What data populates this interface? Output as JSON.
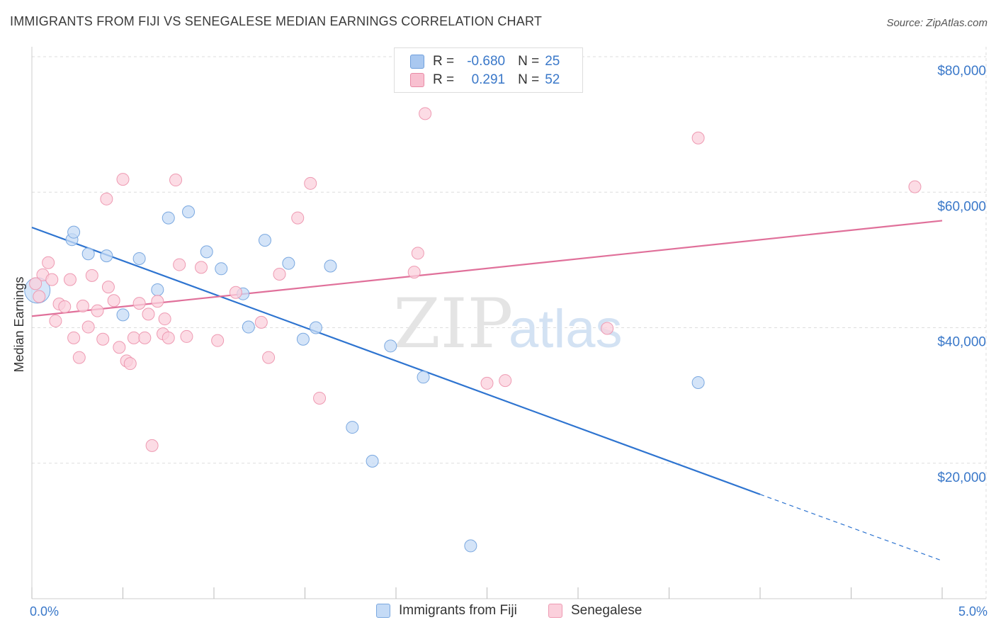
{
  "title": "IMMIGRANTS FROM FIJI VS SENEGALESE MEDIAN EARNINGS CORRELATION CHART",
  "source": "Source: ZipAtlas.com",
  "watermark": {
    "zip": "ZIP",
    "atlas": "atlas"
  },
  "legend": {
    "rows": [
      {
        "r_label": "R =",
        "r_value": "-0.680",
        "n_label": "N =",
        "n_value": "25",
        "color": "#a9c8f0",
        "border": "#6f9fdc"
      },
      {
        "r_label": "R =",
        "r_value": "0.291",
        "n_label": "N =",
        "n_value": "52",
        "color": "#f8c0d0",
        "border": "#e88aa6"
      }
    ]
  },
  "bottom_legend": [
    {
      "label": "Immigrants from Fiji",
      "color": "#c5dbf6",
      "border": "#7aa8e0"
    },
    {
      "label": "Senegalese",
      "color": "#fbd0dc",
      "border": "#ee9ab2"
    }
  ],
  "colors": {
    "fiji_fill": "#c5dbf6",
    "fiji_stroke": "#7aa8e0",
    "fiji_line": "#2e74d0",
    "sen_fill": "#fbd0dc",
    "sen_stroke": "#ee9ab2",
    "sen_line": "#e0709a",
    "grid": "#dddddd",
    "tick_text": "#3a78c9"
  },
  "chart_data": {
    "type": "scatter",
    "xlabel": "",
    "ylabel": "Median Earnings",
    "xlim": [
      0,
      5
    ],
    "ylim": [
      0,
      80000
    ],
    "x_tick_labels": [
      {
        "x": 0,
        "label": "0.0%"
      },
      {
        "x": 5,
        "label": "5.0%"
      }
    ],
    "y_tick_labels": [
      {
        "y": 20000,
        "label": "$20,000"
      },
      {
        "y": 40000,
        "label": "$40,000"
      },
      {
        "y": 60000,
        "label": "$60,000"
      },
      {
        "y": 80000,
        "label": "$80,000"
      }
    ],
    "grid": true,
    "series": [
      {
        "name": "Immigrants from Fiji",
        "points": [
          [
            0.03,
            45500
          ],
          [
            0.22,
            53000
          ],
          [
            0.23,
            54100
          ],
          [
            0.31,
            50900
          ],
          [
            0.41,
            50600
          ],
          [
            0.5,
            41900
          ],
          [
            0.59,
            50200
          ],
          [
            0.69,
            45600
          ],
          [
            0.75,
            56200
          ],
          [
            0.86,
            57100
          ],
          [
            0.96,
            51200
          ],
          [
            1.04,
            48700
          ],
          [
            1.16,
            45000
          ],
          [
            1.19,
            40100
          ],
          [
            1.28,
            52900
          ],
          [
            1.41,
            49500
          ],
          [
            1.49,
            38300
          ],
          [
            1.56,
            40000
          ],
          [
            1.64,
            49100
          ],
          [
            1.76,
            25300
          ],
          [
            1.87,
            20300
          ],
          [
            1.97,
            37300
          ],
          [
            2.15,
            32700
          ],
          [
            2.41,
            7800
          ],
          [
            3.66,
            31900
          ]
        ],
        "trend": {
          "x0": 0,
          "y0": 54800,
          "x1": 4.0,
          "y1": 15400,
          "dash_x1": 5.0,
          "dash_y1": 5600
        }
      },
      {
        "name": "Senegalese",
        "points": [
          [
            0.04,
            44600
          ],
          [
            0.06,
            47800
          ],
          [
            0.09,
            49600
          ],
          [
            0.11,
            47100
          ],
          [
            0.13,
            41000
          ],
          [
            0.15,
            43500
          ],
          [
            0.18,
            43100
          ],
          [
            0.21,
            47100
          ],
          [
            0.23,
            38500
          ],
          [
            0.26,
            35600
          ],
          [
            0.28,
            43200
          ],
          [
            0.31,
            40100
          ],
          [
            0.33,
            47700
          ],
          [
            0.36,
            42500
          ],
          [
            0.39,
            38300
          ],
          [
            0.41,
            59000
          ],
          [
            0.42,
            46000
          ],
          [
            0.45,
            44000
          ],
          [
            0.48,
            37100
          ],
          [
            0.5,
            61900
          ],
          [
            0.52,
            35100
          ],
          [
            0.54,
            34700
          ],
          [
            0.56,
            38500
          ],
          [
            0.59,
            43600
          ],
          [
            0.62,
            38500
          ],
          [
            0.64,
            42000
          ],
          [
            0.66,
            22600
          ],
          [
            0.69,
            43900
          ],
          [
            0.72,
            39100
          ],
          [
            0.73,
            41300
          ],
          [
            0.75,
            38500
          ],
          [
            0.79,
            61800
          ],
          [
            0.81,
            49300
          ],
          [
            0.85,
            38700
          ],
          [
            0.93,
            48900
          ],
          [
            1.02,
            38100
          ],
          [
            1.12,
            45200
          ],
          [
            1.26,
            40800
          ],
          [
            1.3,
            35600
          ],
          [
            1.36,
            47900
          ],
          [
            1.46,
            56200
          ],
          [
            1.53,
            61300
          ],
          [
            1.58,
            29600
          ],
          [
            2.1,
            48200
          ],
          [
            2.12,
            51000
          ],
          [
            2.16,
            71600
          ],
          [
            2.5,
            31800
          ],
          [
            2.6,
            32200
          ],
          [
            3.16,
            39900
          ],
          [
            3.66,
            68000
          ],
          [
            4.85,
            60800
          ],
          [
            0.02,
            46500
          ]
        ],
        "trend": {
          "x0": 0,
          "y0": 41700,
          "x1": 5.0,
          "y1": 55800
        }
      }
    ]
  }
}
